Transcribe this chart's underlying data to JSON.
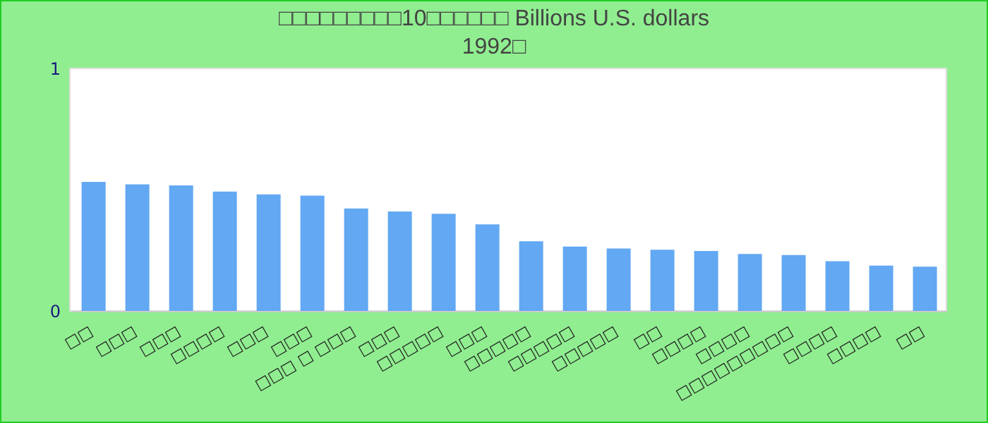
{
  "chart_data": {
    "type": "bar",
    "title": "□□□□□□□□□10□□□□□□ Billions U.S. dollars",
    "subtitle": "1992□",
    "categories": [
      "□□",
      "□□□",
      "□□□",
      "□□□□",
      "□□□",
      "□□□",
      "□□□ □ □□□",
      "□□□",
      "□□□□□",
      "□□□",
      "□□□□□",
      "□□□□□",
      "□□□□□",
      "□□",
      "□□□□",
      "□□□□",
      "□□□□□□□□□",
      "□□□□",
      "□□□□",
      "□□"
    ],
    "values": [
      0.535,
      0.525,
      0.52,
      0.495,
      0.483,
      0.478,
      0.425,
      0.413,
      0.403,
      0.36,
      0.29,
      0.268,
      0.26,
      0.255,
      0.25,
      0.238,
      0.233,
      0.208,
      0.19,
      0.185
    ],
    "color": "#62a8f2",
    "ylim": [
      0,
      1
    ],
    "yticks": [
      0,
      1
    ]
  }
}
